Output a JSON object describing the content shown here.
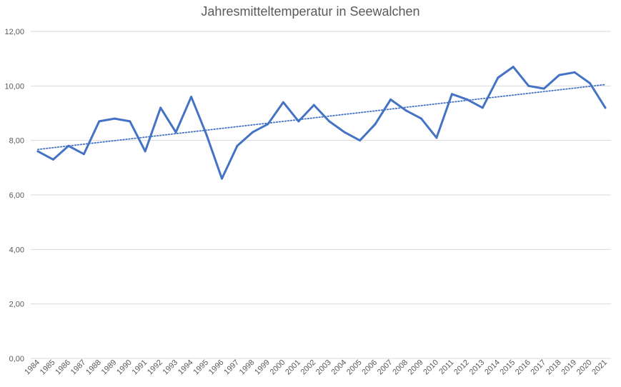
{
  "chart_data": {
    "type": "line",
    "title": "Jahresmitteltemperatur in Seewalchen",
    "xlabel": "",
    "ylabel": "",
    "ylim": [
      0,
      12
    ],
    "yticks": [
      "0,00",
      "2,00",
      "4,00",
      "6,00",
      "8,00",
      "10,00",
      "12,00"
    ],
    "grid": true,
    "categories": [
      "1984",
      "1985",
      "1986",
      "1987",
      "1988",
      "1989",
      "1990",
      "1991",
      "1992",
      "1993",
      "1994",
      "1995",
      "1996",
      "1997",
      "1998",
      "1999",
      "2000",
      "2001",
      "2002",
      "2003",
      "2004",
      "2005",
      "2006",
      "2007",
      "2008",
      "2009",
      "2010",
      "2011",
      "2012",
      "2013",
      "2014",
      "2015",
      "2016",
      "2017",
      "2018",
      "2019",
      "2020",
      "2021"
    ],
    "series": [
      {
        "values": [
          7.6,
          7.3,
          7.8,
          7.5,
          8.7,
          8.8,
          8.7,
          7.6,
          9.2,
          8.3,
          9.6,
          8.2,
          6.6,
          7.8,
          8.3,
          8.6,
          9.4,
          8.7,
          9.3,
          8.7,
          8.3,
          8.0,
          8.6,
          9.5,
          9.1,
          8.8,
          8.1,
          9.7,
          9.5,
          9.2,
          10.3,
          10.7,
          10.0,
          9.9,
          10.4,
          10.5,
          10.1,
          9.2
        ],
        "color": "#4472c4"
      }
    ],
    "trendline": {
      "type": "linear",
      "style": "dotted",
      "color": "#4472c4",
      "start": 7.67,
      "end": 10.05
    }
  }
}
